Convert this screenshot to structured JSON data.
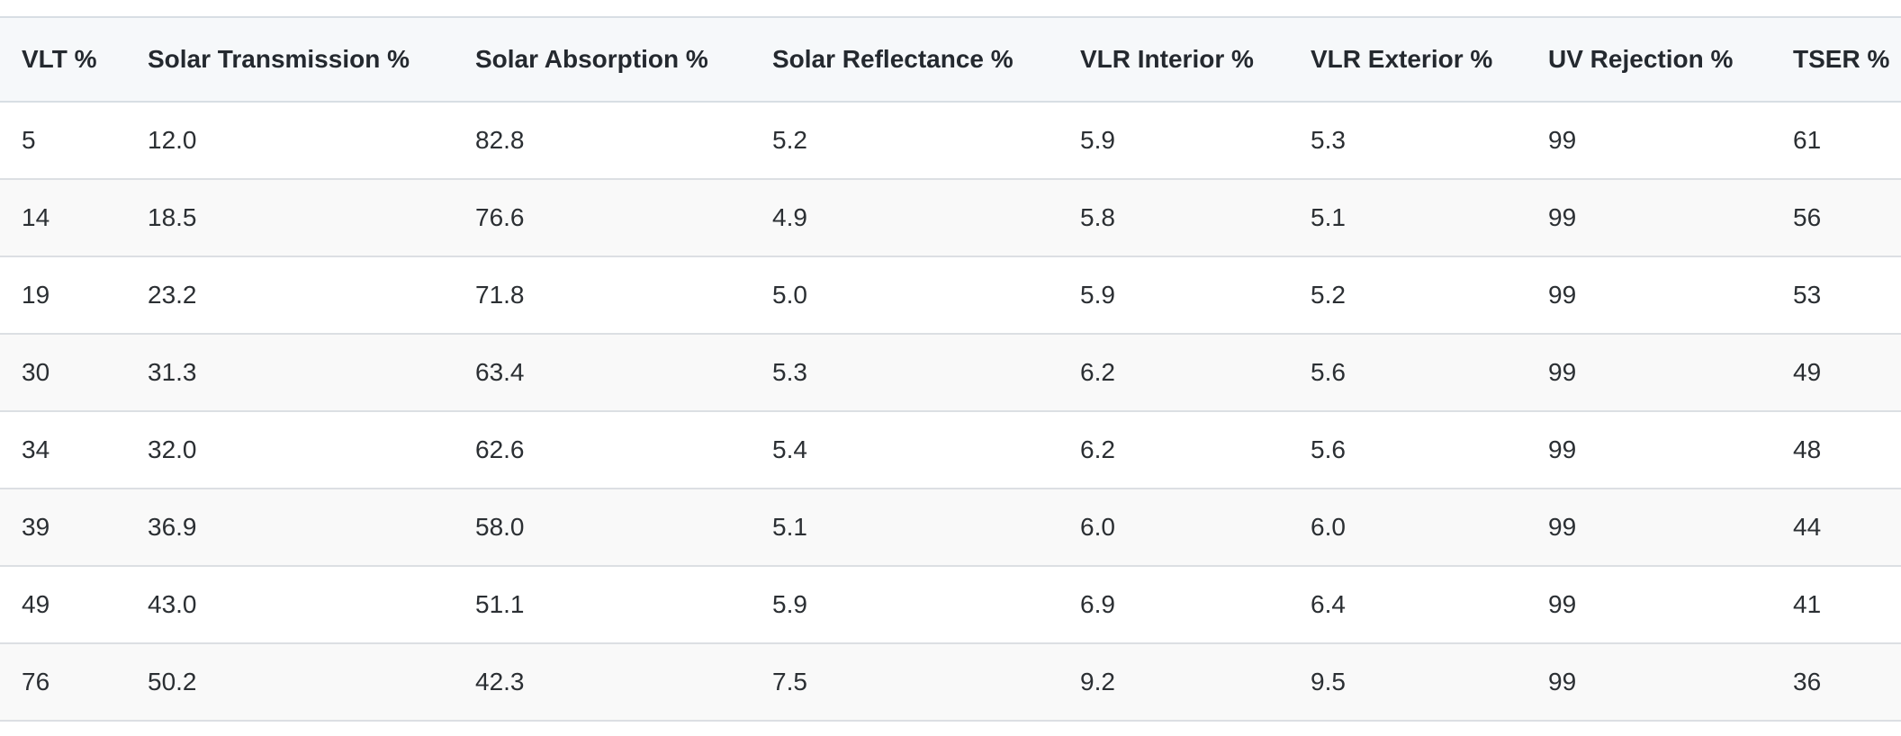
{
  "table": {
    "headers": [
      "VLT %",
      "Solar Transmission %",
      "Solar Absorption %",
      "Solar Reflectance %",
      "VLR Interior %",
      "VLR Exterior %",
      "UV Rejection %",
      "TSER %"
    ],
    "rows": [
      [
        "5",
        "12.0",
        "82.8",
        "5.2",
        "5.9",
        "5.3",
        "99",
        "61"
      ],
      [
        "14",
        "18.5",
        "76.6",
        "4.9",
        "5.8",
        "5.1",
        "99",
        "56"
      ],
      [
        "19",
        "23.2",
        "71.8",
        "5.0",
        "5.9",
        "5.2",
        "99",
        "53"
      ],
      [
        "30",
        "31.3",
        "63.4",
        "5.3",
        "6.2",
        "5.6",
        "99",
        "49"
      ],
      [
        "34",
        "32.0",
        "62.6",
        "5.4",
        "6.2",
        "5.6",
        "99",
        "48"
      ],
      [
        "39",
        "36.9",
        "58.0",
        "5.1",
        "6.0",
        "6.0",
        "99",
        "44"
      ],
      [
        "49",
        "43.0",
        "51.1",
        "5.9",
        "6.9",
        "6.4",
        "99",
        "41"
      ],
      [
        "76",
        "50.2",
        "42.3",
        "7.5",
        "9.2",
        "9.5",
        "99",
        "36"
      ]
    ]
  }
}
